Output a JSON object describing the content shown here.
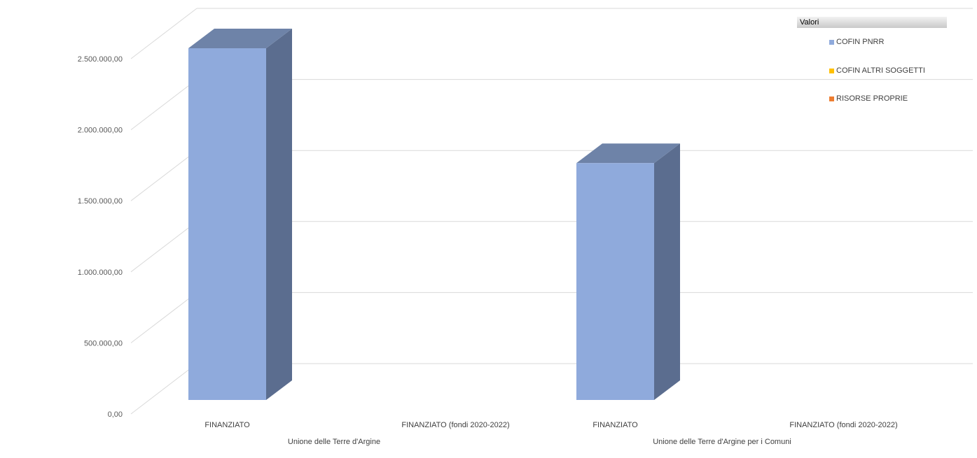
{
  "chart_data": {
    "type": "bar",
    "three_d": true,
    "y_ticks": [
      "0,00",
      "500.000,00",
      "1.000.000,00",
      "1.500.000,00",
      "2.000.000,00",
      "2.500.000,00"
    ],
    "ylim": [
      0,
      2500000
    ],
    "grid": true,
    "legend_position": "top-right",
    "legend_title": "Valori",
    "groups": [
      {
        "label": "Unione delle Terre d'Argine",
        "categories": [
          "FINANZIATO",
          "FINANZIATO (fondi 2020-2022)"
        ]
      },
      {
        "label": "Unione delle Terre d'Argine per i Comuni",
        "categories": [
          "FINANZIATO",
          "FINANZIATO (fondi 2020-2022)"
        ]
      }
    ],
    "series": [
      {
        "name": "COFIN PNRR",
        "color": "#8faadc",
        "values": [
          2480000,
          0,
          1670000,
          0
        ]
      },
      {
        "name": "COFIN ALTRI SOGGETTI",
        "color": "#ffc000",
        "values": [
          0,
          0,
          0,
          0
        ]
      },
      {
        "name": "RISORSE PROPRIE",
        "color": "#ed7d31",
        "values": [
          0,
          0,
          0,
          0
        ]
      }
    ]
  }
}
